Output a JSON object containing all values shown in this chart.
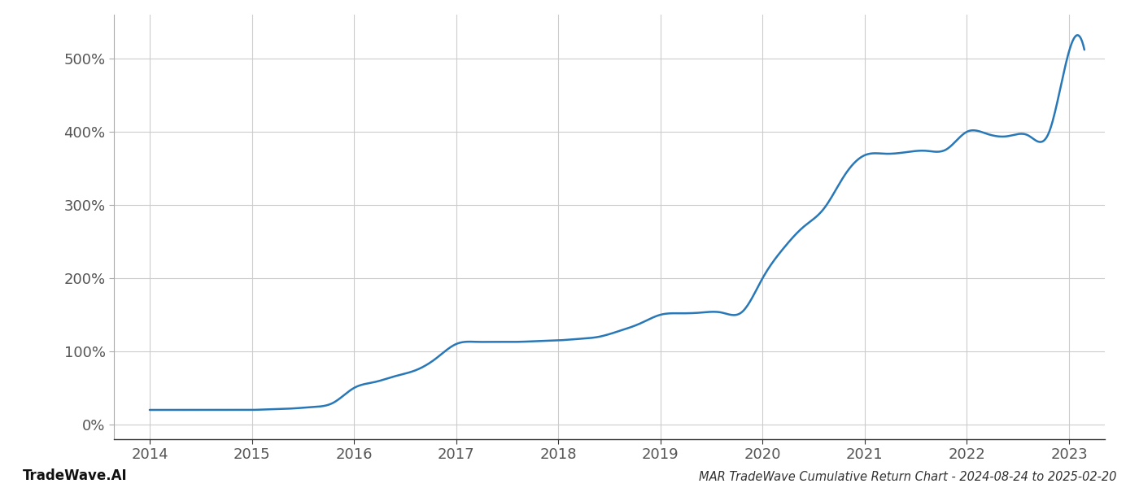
{
  "x_years": [
    2014.0,
    2014.1,
    2014.2,
    2014.4,
    2014.6,
    2014.8,
    2015.0,
    2015.2,
    2015.4,
    2015.6,
    2015.8,
    2016.0,
    2016.2,
    2016.4,
    2016.6,
    2016.8,
    2017.0,
    2017.2,
    2017.4,
    2017.6,
    2017.8,
    2018.0,
    2018.2,
    2018.4,
    2018.6,
    2018.8,
    2019.0,
    2019.2,
    2019.4,
    2019.6,
    2019.8,
    2020.0,
    2020.2,
    2020.4,
    2020.6,
    2020.8,
    2021.0,
    2021.2,
    2021.4,
    2021.6,
    2021.8,
    2022.0,
    2022.2,
    2022.4,
    2022.6,
    2022.8,
    2023.0,
    2023.15
  ],
  "y_values": [
    20,
    20,
    20,
    20,
    20,
    20,
    20,
    21,
    22,
    24,
    30,
    50,
    58,
    66,
    74,
    90,
    110,
    113,
    113,
    113,
    114,
    115,
    117,
    120,
    128,
    138,
    150,
    152,
    153,
    153,
    154,
    200,
    240,
    270,
    295,
    340,
    368,
    370,
    372,
    374,
    376,
    400,
    397,
    394,
    395,
    398,
    510,
    512
  ],
  "line_color": "#2878b8",
  "line_width": 1.8,
  "background_color": "#ffffff",
  "grid_color": "#cccccc",
  "title": "MAR TradeWave Cumulative Return Chart - 2024-08-24 to 2025-02-20",
  "watermark": "TradeWave.AI",
  "x_tick_labels": [
    "2014",
    "2015",
    "2016",
    "2017",
    "2018",
    "2019",
    "2020",
    "2021",
    "2022",
    "2023"
  ],
  "x_tick_positions": [
    2014,
    2015,
    2016,
    2017,
    2018,
    2019,
    2020,
    2021,
    2022,
    2023
  ],
  "y_tick_labels": [
    "0%",
    "100%",
    "200%",
    "300%",
    "400%",
    "500%"
  ],
  "y_tick_positions": [
    0,
    100,
    200,
    300,
    400,
    500
  ],
  "xlim": [
    2013.65,
    2023.35
  ],
  "ylim": [
    -20,
    560
  ],
  "title_fontsize": 10.5,
  "watermark_fontsize": 12,
  "tick_fontsize": 13
}
